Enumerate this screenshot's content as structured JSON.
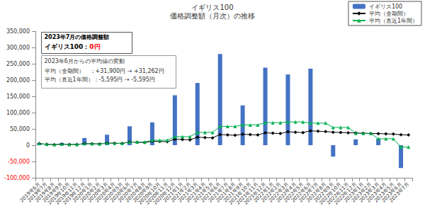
{
  "chart_data": {
    "type": "bar",
    "title": "イギリス100",
    "subtitle": "価格調整額（月次）の推移",
    "categories": [
      "2019年6月",
      "2019年7月",
      "2019年8月",
      "2019年9月",
      "2019年10月",
      "2019年11月",
      "2019年12月",
      "2020年1月",
      "2020年2月",
      "2020年3月",
      "2020年4月",
      "2020年5月",
      "2020年6月",
      "2020年7月",
      "2020年8月",
      "2020年9月",
      "2020年10月",
      "2020年11月",
      "2020年12月",
      "2021年1月",
      "2021年2月",
      "2021年3月",
      "2021年4月",
      "2021年5月",
      "2021年6月",
      "2021年7月",
      "2021年8月",
      "2021年9月",
      "2021年10月",
      "2021年11月",
      "2021年12月",
      "2022年1月",
      "2022年2月",
      "2022年3月",
      "2022年4月",
      "2022年5月",
      "2022年6月",
      "2022年7月",
      "2022年8月",
      "2022年9月",
      "2022年10月",
      "2022年11月",
      "2022年12月",
      "2023年1月",
      "2023年2月",
      "2023年3月",
      "2023年4月",
      "2023年5月",
      "2023年6月",
      "2023年7月"
    ],
    "series": [
      {
        "name": "イギリス100",
        "type": "bar",
        "color": "#4472C4",
        "values": [
          5000,
          0,
          0,
          7000,
          0,
          0,
          22000,
          0,
          0,
          32000,
          0,
          0,
          58000,
          0,
          0,
          70000,
          0,
          0,
          153240,
          0,
          0,
          191000,
          0,
          0,
          280000,
          0,
          0,
          122000,
          0,
          0,
          238000,
          0,
          0,
          217000,
          0,
          0,
          235000,
          0,
          0,
          -35000,
          0,
          0,
          18000,
          0,
          0,
          20000,
          0,
          0,
          -70140,
          0
        ]
      },
      {
        "name": "平均（全期間）",
        "type": "line",
        "color": "#000000",
        "marker": "diamond",
        "values": [
          5000,
          2500,
          1667,
          3000,
          2400,
          2000,
          4857,
          4250,
          3778,
          6600,
          6000,
          5500,
          9538,
          8857,
          8267,
          12125,
          11412,
          10778,
          18276,
          17362,
          16535,
          24465,
          23402,
          22427,
          32730,
          31471,
          30305,
          33580,
          32422,
          31341,
          38008,
          36820,
          35704,
          41036,
          39864,
          38757,
          44061,
          42901,
          41801,
          39881,
          38909,
          37982,
          37517,
          36665,
          35850,
          35505,
          34750,
          34026,
          31900,
          31262
        ]
      },
      {
        "name": "平均（直近1年間）",
        "type": "line",
        "color": "#00B050",
        "marker": "triangle",
        "values": [
          5000,
          2500,
          1667,
          3000,
          2400,
          2000,
          4857,
          4250,
          3778,
          6600,
          6000,
          5500,
          9917,
          9917,
          9917,
          15167,
          15167,
          15167,
          26103,
          26103,
          26103,
          39353,
          39353,
          39353,
          57853,
          57853,
          57853,
          62187,
          62187,
          62187,
          69250,
          69250,
          69250,
          71417,
          71417,
          71417,
          67667,
          67667,
          67667,
          54583,
          54583,
          54583,
          36250,
          36250,
          36250,
          19833,
          19833,
          19833,
          -5595,
          -5595
        ]
      }
    ],
    "ylim": [
      -100000,
      350000
    ],
    "yticks": [
      {
        "value": -100000,
        "label": "-100,000"
      },
      {
        "value": -50000,
        "label": "-50,000"
      },
      0,
      {
        "value": 50000,
        "label": "50,000"
      },
      {
        "value": 100000,
        "label": "100,000"
      },
      {
        "value": 150000,
        "label": "150,000"
      },
      {
        "value": 200000,
        "label": "200,000"
      },
      {
        "value": 250000,
        "label": "250,000"
      },
      {
        "value": 300000,
        "label": "300,000"
      },
      {
        "value": 350000,
        "label": "350,000"
      }
    ],
    "grid": false,
    "legend": "upper right",
    "annotations": [
      {
        "title": "2023年7月の価格調整額",
        "text": "イギリス100：",
        "value": "0円"
      },
      {
        "title": "2023年6月からの平均値の変動",
        "lines": [
          "平均（全期間）　：+31,900円 → +31,262円",
          "平均（直近1年間）：-5,595円 → -5,595円"
        ]
      }
    ]
  }
}
